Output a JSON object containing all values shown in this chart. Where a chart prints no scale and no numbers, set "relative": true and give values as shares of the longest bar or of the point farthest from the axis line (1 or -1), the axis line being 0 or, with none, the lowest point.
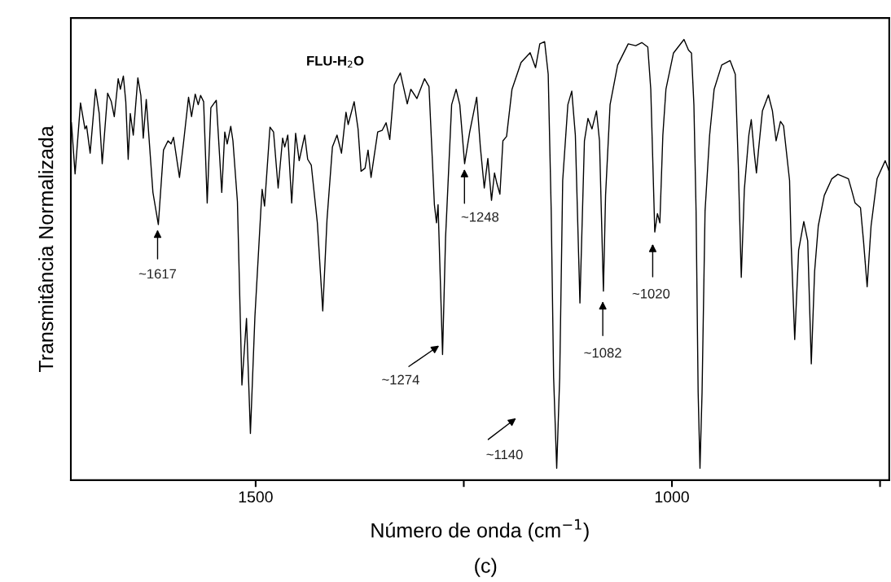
{
  "chart_data": {
    "type": "line",
    "relative": true,
    "title": "FLU-H$_{2}$O",
    "xlabel": "Número de onda (cm$^{−1}$)",
    "ylabel": "Transmitância Normalizada",
    "xlim": [
      1722,
      739
    ],
    "xticks": [
      1500,
      {
        "value": 1250,
        "label": null
      },
      1000,
      {
        "value": 750,
        "label": null
      }
    ],
    "grid": false,
    "marker": "none",
    "line_style": "solid",
    "series": [
      {
        "color": "#000000",
        "x": [
          1721.3,
          1716.9,
          1710.4,
          1705.0,
          1703.1,
          1698.8,
          1692.3,
          1687.9,
          1684.3,
          1677.8,
          1673.4,
          1669.8,
          1665.1,
          1662.5,
          1658.9,
          1656.0,
          1653.1,
          1650.6,
          1647.0,
          1641.5,
          1637.9,
          1635.0,
          1631.4,
          1623.4,
          1616.9,
          1610.7,
          1605.3,
          1601.6,
          1598.7,
          1591.5,
          1586.4,
          1580.6,
          1577.0,
          1572.6,
          1569.0,
          1566.1,
          1562.5,
          1558.2,
          1553.8,
          1547.3,
          1540.7,
          1537.1,
          1534.2,
          1529.9,
          1527.3,
          1521.9,
          1516.5,
          1511.0,
          1506.3,
          1500.9,
          1493.6,
          1492.2,
          1489.3,
          1482.8,
          1478.5,
          1473.0,
          1467.6,
          1465.1,
          1461.4,
          1456.7,
          1452.0,
          1447.7,
          1441.1,
          1437.5,
          1433.2,
          1425.9,
          1419.4,
          1414.3,
          1407.8,
          1402.3,
          1396.9,
          1391.5,
          1388.9,
          1381.7,
          1377.0,
          1373.4,
          1368.6,
          1365.0,
          1361.4,
          1353.4,
          1348.0,
          1343.3,
          1338.9,
          1333.5,
          1326.2,
          1317.9,
          1313.6,
          1306.3,
          1297.2,
          1291.8,
          1285.3,
          1282.8,
          1280.9,
          1275.5,
          1271.9,
          1264.6,
          1259.2,
          1254.8,
          1249.0,
          1242.9,
          1234.5,
          1230.1,
          1225.4,
          1221.1,
          1216.7,
          1213.1,
          1210.2,
          1206.6,
          1203.0,
          1198.6,
          1192.1,
          1181.2,
          1170.3,
          1163.8,
          1158.7,
          1152.9,
          1148.6,
          1145.0,
          1142.1,
          1138.4,
          1134.8,
          1131.2,
          1125.0,
          1120.3,
          1116.0,
          1110.5,
          1105.1,
          1100.8,
          1096.0,
          1090.6,
          1087.0,
          1082.3,
          1079.7,
          1074.3,
          1065.2,
          1052.5,
          1043.5,
          1036.2,
          1029.0,
          1025.4,
          1020.6,
          1017.4,
          1014.5,
          1010.9,
          1007.2,
          998.2,
          985.5,
          980.1,
          976.5,
          973.6,
          971.0,
          968.5,
          966.3,
          963.8,
          960.2,
          954.7,
          949.3,
          940.2,
          930.1,
          923.9,
          920.3,
          916.7,
          913.0,
          907.6,
          904.7,
          901.1,
          898.5,
          896.0,
          891.3,
          884.1,
          879.3,
          874.9,
          869.6,
          865.9,
          858.7,
          856.9,
          852.5,
          847.8,
          841.6,
          836.9,
          832.6,
          828.6,
          824.2,
          817.0,
          807.9,
          800.7,
          788.0,
          784.4,
          780.0,
          773.5,
          769.9,
          765.5,
          760.8,
          753.6,
          743.8,
          739.1
        ],
        "values": [
          0.811,
          0.695,
          0.856,
          0.797,
          0.804,
          0.742,
          0.887,
          0.832,
          0.718,
          0.878,
          0.859,
          0.825,
          0.911,
          0.887,
          0.917,
          0.859,
          0.728,
          0.832,
          0.783,
          0.913,
          0.873,
          0.776,
          0.864,
          0.653,
          0.58,
          0.749,
          0.77,
          0.763,
          0.778,
          0.687,
          0.77,
          0.869,
          0.825,
          0.876,
          0.852,
          0.873,
          0.859,
          0.629,
          0.845,
          0.862,
          0.653,
          0.79,
          0.763,
          0.803,
          0.77,
          0.632,
          0.216,
          0.367,
          0.106,
          0.371,
          0.618,
          0.66,
          0.622,
          0.801,
          0.79,
          0.663,
          0.776,
          0.756,
          0.783,
          0.629,
          0.787,
          0.725,
          0.783,
          0.728,
          0.715,
          0.584,
          0.384,
          0.591,
          0.756,
          0.783,
          0.742,
          0.835,
          0.807,
          0.859,
          0.797,
          0.701,
          0.708,
          0.749,
          0.687,
          0.79,
          0.794,
          0.811,
          0.773,
          0.897,
          0.924,
          0.854,
          0.887,
          0.866,
          0.911,
          0.893,
          0.625,
          0.584,
          0.625,
          0.285,
          0.55,
          0.852,
          0.887,
          0.852,
          0.718,
          0.79,
          0.869,
          0.756,
          0.663,
          0.73,
          0.635,
          0.697,
          0.673,
          0.649,
          0.77,
          0.78,
          0.887,
          0.948,
          0.97,
          0.936,
          0.99,
          0.995,
          0.921,
          0.611,
          0.233,
          0.027,
          0.233,
          0.68,
          0.852,
          0.883,
          0.783,
          0.402,
          0.77,
          0.821,
          0.797,
          0.838,
          0.77,
          0.429,
          0.646,
          0.852,
          0.942,
          0.99,
          0.986,
          0.993,
          0.983,
          0.887,
          0.563,
          0.605,
          0.584,
          0.783,
          0.887,
          0.969,
          1.0,
          0.976,
          0.969,
          0.852,
          0.611,
          0.199,
          0.027,
          0.199,
          0.611,
          0.783,
          0.887,
          0.942,
          0.952,
          0.921,
          0.715,
          0.46,
          0.66,
          0.783,
          0.818,
          0.742,
          0.697,
          0.749,
          0.838,
          0.874,
          0.838,
          0.77,
          0.814,
          0.804,
          0.68,
          0.543,
          0.319,
          0.522,
          0.587,
          0.543,
          0.264,
          0.474,
          0.577,
          0.646,
          0.684,
          0.694,
          0.684,
          0.66,
          0.629,
          0.618,
          0.543,
          0.439,
          0.577,
          0.684,
          0.725,
          0.701
        ]
      }
    ],
    "annotations": [
      "~1617",
      "~1248",
      "~1274",
      "~1140",
      "~1082",
      "~1020",
      "(c)"
    ]
  }
}
